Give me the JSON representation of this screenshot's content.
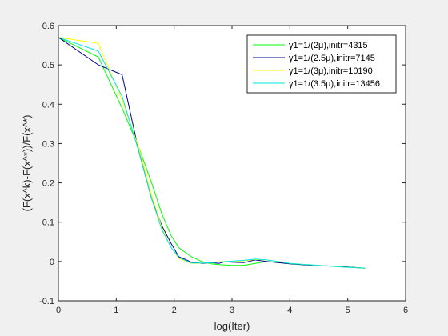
{
  "chart_data": {
    "type": "line",
    "xlabel": "log(Iter)",
    "ylabel": "(F(x^k)-F(x^*))/F(x^*)",
    "xlim": [
      0,
      6
    ],
    "ylim": [
      -0.1,
      0.6
    ],
    "xticks": [
      "0",
      "1",
      "2",
      "3",
      "4",
      "5",
      "6"
    ],
    "yticks": [
      "-0.1",
      "0",
      "0.1",
      "0.2",
      "0.3",
      "0.4",
      "0.5",
      "0.6"
    ],
    "grid": false,
    "legend_position": "top-right",
    "series": [
      {
        "name": "γ1=1/(2μ),initr=4315",
        "color": "#00ff00",
        "x": [
          0,
          0.69,
          1.1,
          1.39,
          1.61,
          1.79,
          1.95,
          2.08,
          2.3,
          2.48,
          2.64,
          2.77,
          2.89,
          3.0,
          3.2,
          3.4,
          3.6,
          3.8,
          4.0,
          4.3,
          4.6,
          4.9,
          5.3
        ],
        "y": [
          0.57,
          0.52,
          0.39,
          0.29,
          0.2,
          0.12,
          0.065,
          0.035,
          0.012,
          0.0,
          -0.006,
          -0.008,
          -0.009,
          -0.01,
          -0.01,
          -0.005,
          0.0,
          -0.003,
          -0.006,
          -0.009,
          -0.011,
          -0.013,
          -0.017
        ]
      },
      {
        "name": "γ1=1/(2.5μ),initr=7145",
        "color": "#00008b",
        "x": [
          0,
          0.69,
          1.1,
          1.39,
          1.61,
          1.79,
          1.95,
          2.08,
          2.2,
          2.3,
          2.48,
          2.64,
          2.77,
          2.89,
          3.0,
          3.2,
          3.4,
          3.6,
          3.8,
          4.0,
          4.3,
          4.6,
          4.9,
          5.3
        ],
        "y": [
          0.57,
          0.5,
          0.475,
          0.28,
          0.16,
          0.09,
          0.045,
          0.012,
          0.005,
          -0.002,
          -0.005,
          -0.003,
          -0.005,
          0.0,
          -0.002,
          -0.003,
          0.004,
          0.0,
          -0.003,
          -0.006,
          -0.009,
          -0.011,
          -0.013,
          -0.017
        ]
      },
      {
        "name": "γ1=1/(3μ),initr=10190",
        "color": "#ffff00",
        "x": [
          0,
          0.69,
          1.1,
          1.39,
          1.61,
          1.79,
          1.95,
          2.08,
          2.3,
          2.48,
          2.64,
          2.77,
          2.89,
          3.0,
          3.2,
          3.4,
          3.6,
          3.8,
          4.0,
          4.3,
          4.6,
          4.9,
          5.3
        ],
        "y": [
          0.57,
          0.555,
          0.41,
          0.29,
          0.17,
          0.085,
          0.035,
          0.008,
          -0.005,
          -0.004,
          -0.002,
          -0.001,
          0.0,
          0.0,
          0.002,
          0.005,
          0.004,
          0.0,
          -0.005,
          -0.008,
          -0.011,
          -0.014,
          -0.017
        ]
      },
      {
        "name": "γ1=1/(3.5μ),initr=13456",
        "color": "#00e5e5",
        "x": [
          0,
          0.69,
          1.1,
          1.39,
          1.61,
          1.79,
          1.95,
          2.08,
          2.3,
          2.48,
          2.64,
          2.77,
          2.89,
          3.0,
          3.2,
          3.4,
          3.6,
          3.8,
          4.0,
          4.3,
          4.6,
          4.9,
          5.3
        ],
        "y": [
          0.57,
          0.535,
          0.42,
          0.28,
          0.16,
          0.08,
          0.035,
          0.01,
          -0.004,
          -0.004,
          -0.003,
          -0.002,
          0.0,
          0.001,
          0.003,
          0.006,
          0.004,
          0.0,
          -0.005,
          -0.008,
          -0.011,
          -0.014,
          -0.017
        ]
      }
    ]
  }
}
